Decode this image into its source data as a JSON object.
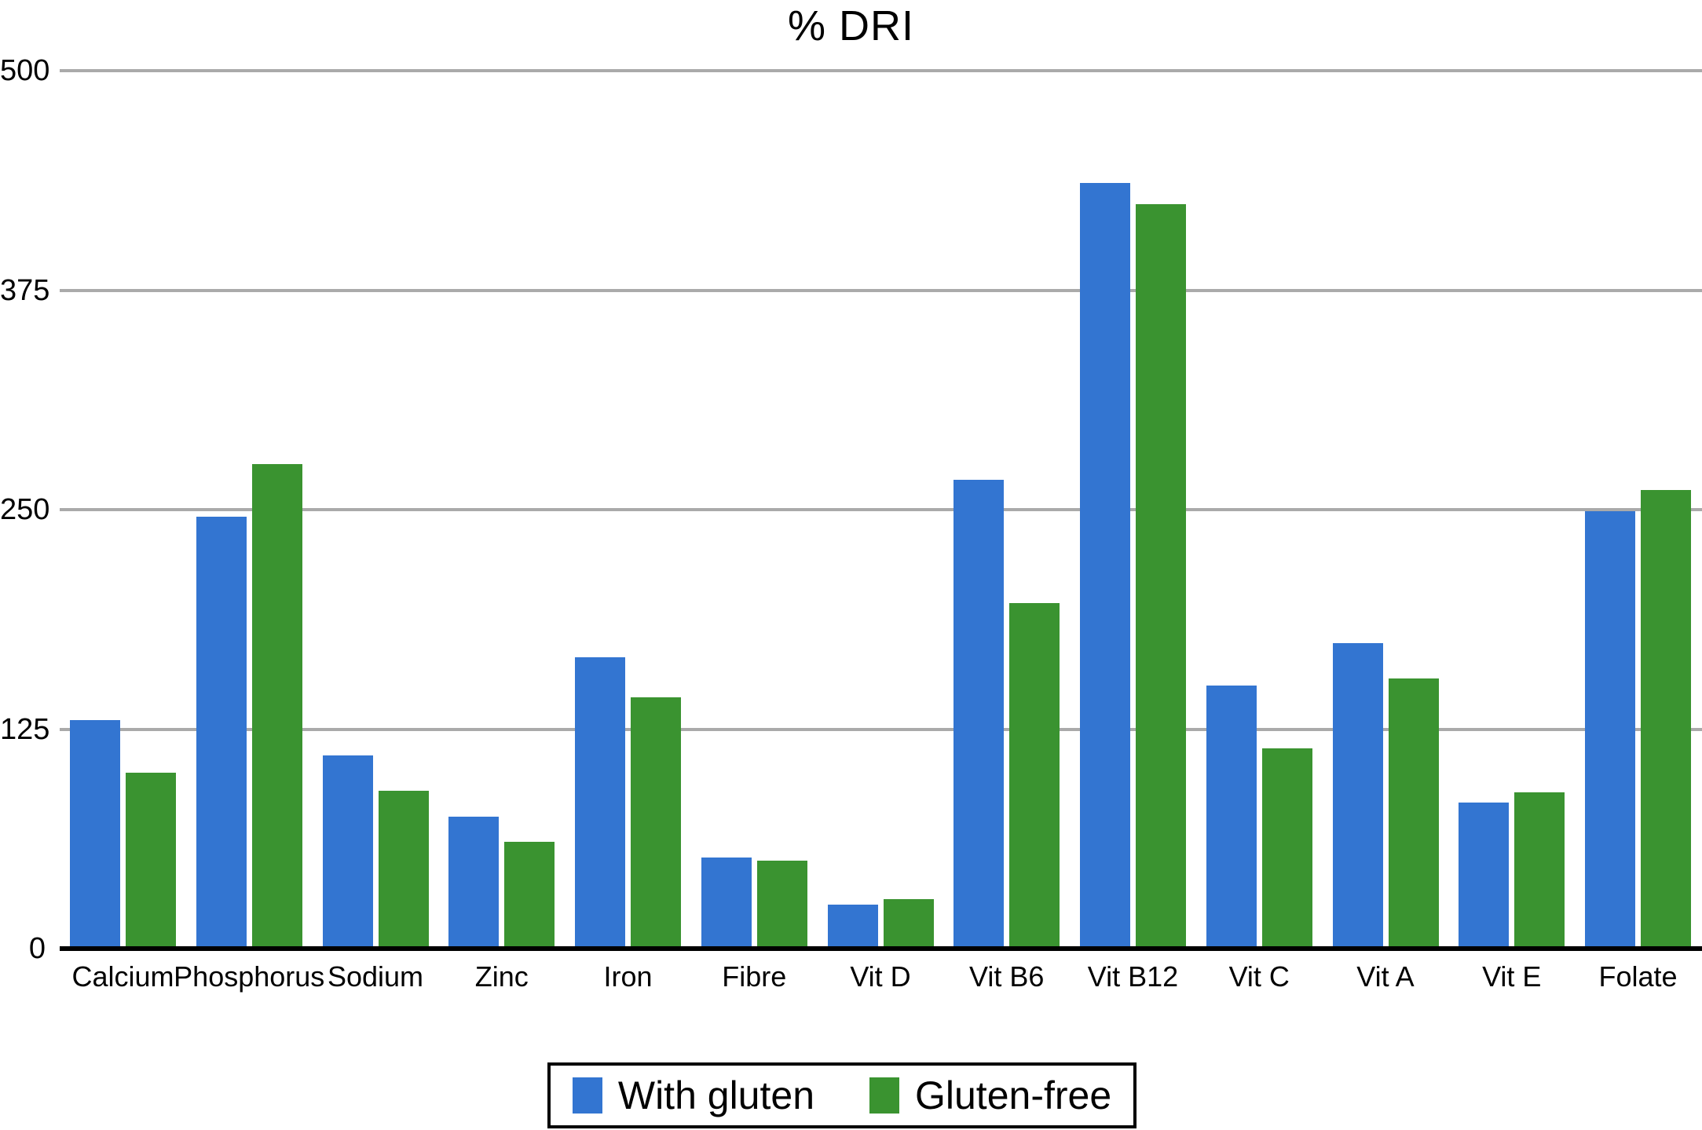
{
  "title": "% DRI",
  "colors": {
    "with_gluten": "#3375D1",
    "gluten_free": "#3A9330",
    "gridline": "#AAAAAA",
    "axis": "#000000",
    "background": "#FFFFFF"
  },
  "legend": {
    "items": [
      {
        "label": "With gluten",
        "color": "#3375D1"
      },
      {
        "label": "Gluten-free",
        "color": "#3A9330"
      }
    ]
  },
  "chart_data": {
    "type": "bar",
    "title": "% DRI",
    "xlabel": "",
    "ylabel": "",
    "categories": [
      "Calcium",
      "Phosphorus",
      "Sodium",
      "Zinc",
      "Iron",
      "Fibre",
      "Vit D",
      "Vit B6",
      "Vit B12",
      "Vit C",
      "Vit A",
      "Vit E",
      "Folate"
    ],
    "series": [
      {
        "name": "With gluten",
        "color": "#3375D1",
        "values": [
          130,
          246,
          110,
          75,
          166,
          52,
          25,
          267,
          436,
          150,
          174,
          83,
          249
        ]
      },
      {
        "name": "Gluten-free",
        "color": "#3A9330",
        "values": [
          100,
          276,
          90,
          61,
          143,
          50,
          28,
          197,
          424,
          114,
          154,
          89,
          261
        ]
      }
    ],
    "ylim": [
      0,
      500
    ],
    "yticks": [
      0,
      125,
      250,
      375,
      500
    ],
    "grid": true,
    "legend_position": "bottom"
  }
}
